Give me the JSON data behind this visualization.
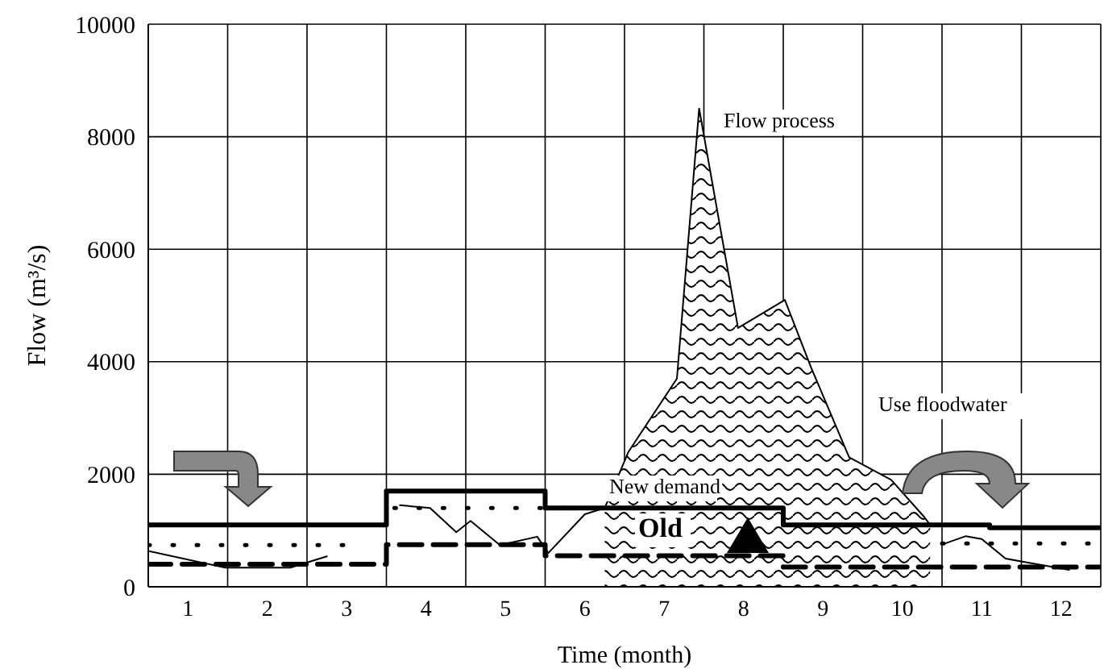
{
  "chart_data": {
    "type": "line",
    "xlabel": "Time (month)",
    "ylabel": "Flow (m³/s)",
    "xlim": [
      0.5,
      12.5
    ],
    "xticks": [
      {
        "value": 0.5,
        "label": null
      },
      1,
      {
        "value": 1.5,
        "label": null
      },
      2,
      {
        "value": 2.5,
        "label": null
      },
      3,
      {
        "value": 3.5,
        "label": null
      },
      4,
      {
        "value": 4.5,
        "label": null
      },
      5,
      {
        "value": 5.5,
        "label": null
      },
      6,
      {
        "value": 6.5,
        "label": null
      },
      7,
      {
        "value": 7.5,
        "label": null
      },
      8,
      {
        "value": 8.5,
        "label": null
      },
      9,
      {
        "value": 9.5,
        "label": null
      },
      10,
      {
        "value": 10.5,
        "label": null
      },
      11,
      {
        "value": 11.5,
        "label": null
      },
      12,
      {
        "value": 12.5,
        "label": null
      }
    ],
    "ylim": [
      0,
      10000
    ],
    "yticks": [
      0,
      2000,
      4000,
      6000,
      8000,
      10000
    ],
    "grid": true,
    "marker": "none",
    "series": [
      {
        "type": "area",
        "color": "#000000",
        "x": [
          6.25,
          6.55,
          7.16,
          7.44,
          7.93,
          8.52,
          8.85,
          9.33,
          9.86,
          10.27,
          10.35
        ],
        "values": [
          1400,
          2400,
          3700,
          8500,
          4600,
          5100,
          3900,
          2300,
          1900,
          1250,
          1100
        ]
      },
      {
        "color": "#000000",
        "line_style": "solid",
        "x": [
          0.52,
          1.47,
          2.29,
          2.75,
          3.1,
          3.67,
          4.05,
          4.38,
          4.56,
          4.93,
          5.4,
          5.54,
          6.0,
          6.25,
          10.4,
          10.5,
          10.8,
          11.0,
          11.3,
          11.7,
          12.1
        ],
        "values": [
          630,
          340,
          340,
          540,
          null,
          1450,
          1400,
          970,
          1170,
          740,
          890,
          600,
          1290,
          1400,
          null,
          750,
          900,
          850,
          500,
          400,
          300
        ]
      },
      {
        "color": "#000000",
        "line_style": "dotted",
        "x": [
          0.5,
          3.0,
          3.2,
          3.6,
          6.0,
          6.2,
          10.5,
          12.5
        ],
        "values": [
          740,
          740,
          null,
          1400,
          1400,
          null,
          770,
          770
        ]
      },
      {
        "type": "step",
        "color": "#000000",
        "line_style": "solid",
        "x": [
          0.5,
          3.5,
          5.5,
          8.5,
          11.1,
          12.5
        ],
        "values": [
          1100,
          1700,
          1400,
          1100,
          1050,
          1050
        ]
      },
      {
        "type": "step",
        "color": "#000000",
        "line_style": "dashed",
        "x": [
          0.5,
          3.5,
          5.5,
          8.5,
          12.5
        ],
        "values": [
          400,
          750,
          550,
          350,
          350
        ]
      }
    ],
    "annotations": [
      "Flow process",
      "New demand",
      "Old",
      "Use floodwater"
    ]
  }
}
